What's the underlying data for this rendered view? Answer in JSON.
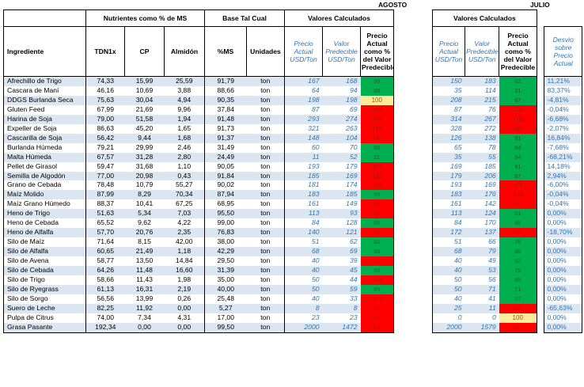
{
  "months": {
    "left": "AGOSTO",
    "right": "JULIO"
  },
  "headers": {
    "group_nutrientes": "Nutrientes como % de MS",
    "group_base": "Base Tal Cual",
    "group_valores": "Valores Calculados",
    "group_valores_julio": "Valores Calculados",
    "ingrediente": "Ingrediente",
    "tdn": "TDN1x",
    "cp": "CP",
    "almidon": "Almidón",
    "ms": "%MS",
    "unidades": "Unidades",
    "precio_actual": "Precio Actual USD/Ton",
    "valor_predecible": "Valor Predecible USD/Ton",
    "precio_pct": "Precio Actual como % del Valor Predecible",
    "j_precio_actual": "Precio Actual USD/Ton",
    "j_valor_predecible": "Valor Predecible USD/Ton",
    "j_precio_pct": "Precio Actual como % del Valor Predecible",
    "desvio": "Desvio sobre Precio Actual"
  },
  "rows": [
    {
      "name": "Afrechillo de Trigo",
      "tdn": "74,33",
      "cp": "15,99",
      "alm": "25,59",
      "ms": "91,79",
      "unit": "ton",
      "precio": "167",
      "valor": "168",
      "pct": "99",
      "pct_color": "green",
      "jprecio": "150",
      "jvalor": "183",
      "jpct": "82",
      "jpct_color": "green",
      "desvio": "11,21%"
    },
    {
      "name": "Cascara de Maní",
      "tdn": "46,16",
      "cp": "10,69",
      "alm": "3,88",
      "ms": "88,66",
      "unit": "ton",
      "precio": "64",
      "valor": "94",
      "pct": "68",
      "pct_color": "green",
      "jprecio": "35",
      "jvalor": "114",
      "jpct": "31",
      "jpct_color": "green",
      "desvio": "83,37%"
    },
    {
      "name": "DDGS Burlanda Seca",
      "tdn": "75,63",
      "cp": "30,04",
      "alm": "4,94",
      "ms": "90,35",
      "unit": "ton",
      "precio": "198",
      "valor": "198",
      "pct": "100",
      "pct_color": "yellow",
      "jprecio": "208",
      "jvalor": "215",
      "jpct": "97",
      "jpct_color": "green",
      "desvio": "-4,81%"
    },
    {
      "name": "Gluten Feed",
      "tdn": "67,99",
      "cp": "21,69",
      "alm": "9,96",
      "ms": "37,84",
      "unit": "ton",
      "precio": "87",
      "valor": "69",
      "pct": "126",
      "pct_color": "red",
      "jprecio": "87",
      "jvalor": "76",
      "jpct": "114",
      "jpct_color": "red",
      "desvio": "-0,04%"
    },
    {
      "name": "Harina de Soja",
      "tdn": "79,00",
      "cp": "51,58",
      "alm": "1,94",
      "ms": "91,48",
      "unit": "ton",
      "precio": "293",
      "valor": "274",
      "pct": "107",
      "pct_color": "red",
      "jprecio": "314",
      "jvalor": "267",
      "jpct": "118",
      "jpct_color": "red",
      "desvio": "-6,68%"
    },
    {
      "name": "Expeller de Soja",
      "tdn": "86,63",
      "cp": "45,20",
      "alm": "1,65",
      "ms": "91,73",
      "unit": "ton",
      "precio": "321",
      "valor": "263",
      "pct": "122",
      "pct_color": "red",
      "jprecio": "328",
      "jvalor": "272",
      "jpct": "120",
      "jpct_color": "red",
      "desvio": "-2,07%"
    },
    {
      "name": "Cascarilla de Soja",
      "tdn": "56,42",
      "cp": "9,44",
      "alm": "1,68",
      "ms": "91,37",
      "unit": "ton",
      "precio": "148",
      "valor": "104",
      "pct": "142",
      "pct_color": "red",
      "jprecio": "126",
      "jvalor": "138",
      "jpct": "91",
      "jpct_color": "green",
      "desvio": "16,84%"
    },
    {
      "name": "Burlanda Húmeda",
      "tdn": "79,21",
      "cp": "29,99",
      "alm": "2,46",
      "ms": "31,49",
      "unit": "ton",
      "precio": "60",
      "valor": "70",
      "pct": "86",
      "pct_color": "green",
      "jprecio": "65",
      "jvalor": "78",
      "jpct": "84",
      "jpct_color": "green",
      "desvio": "-7,68%"
    },
    {
      "name": "Malta Húmeda",
      "tdn": "67,57",
      "cp": "31,28",
      "alm": "2,80",
      "ms": "24,49",
      "unit": "ton",
      "precio": "11",
      "valor": "52",
      "pct": "21",
      "pct_color": "green",
      "jprecio": "35",
      "jvalor": "55",
      "jpct": "64",
      "jpct_color": "green",
      "desvio": "-68,21%"
    },
    {
      "name": "Pellet de Girasol",
      "tdn": "59,47",
      "cp": "31,68",
      "alm": "1,10",
      "ms": "90,05",
      "unit": "ton",
      "precio": "193",
      "valor": "179",
      "pct": "107",
      "pct_color": "red",
      "jprecio": "169",
      "jvalor": "185",
      "jpct": "91",
      "jpct_color": "green",
      "desvio": "14,18%"
    },
    {
      "name": "Semilla de Algodón",
      "tdn": "77,00",
      "cp": "20,98",
      "alm": "0,43",
      "ms": "91,84",
      "unit": "ton",
      "precio": "185",
      "valor": "169",
      "pct": "110",
      "pct_color": "red",
      "jprecio": "179",
      "jvalor": "206",
      "jpct": "87",
      "jpct_color": "green",
      "desvio": "2,94%"
    },
    {
      "name": "Grano de Cebada",
      "tdn": "78,48",
      "cp": "10,79",
      "alm": "55,27",
      "ms": "90,02",
      "unit": "ton",
      "precio": "181",
      "valor": "174",
      "pct": "104",
      "pct_color": "red",
      "jprecio": "193",
      "jvalor": "169",
      "jpct": "114",
      "jpct_color": "red",
      "desvio": "-6,00%"
    },
    {
      "name": "Maíz Molido",
      "tdn": "87,99",
      "cp": "8,29",
      "alm": "70,34",
      "ms": "87,94",
      "unit": "ton",
      "precio": "183",
      "valor": "185",
      "pct": "99",
      "pct_color": "green",
      "jprecio": "183",
      "jvalor": "176",
      "jpct": "104",
      "jpct_color": "red",
      "desvio": "-0,04%"
    },
    {
      "name": "Maíz Grano Húmedo",
      "tdn": "88,37",
      "cp": "10,41",
      "alm": "67,25",
      "ms": "68,95",
      "unit": "ton",
      "precio": "161",
      "valor": "149",
      "pct": "108",
      "pct_color": "red",
      "jprecio": "161",
      "jvalor": "142",
      "jpct": "113",
      "jpct_color": "red",
      "desvio": "-0,04%"
    },
    {
      "name": "Heno de Trigo",
      "tdn": "51,63",
      "cp": "5,34",
      "alm": "7,03",
      "ms": "95,50",
      "unit": "ton",
      "precio": "113",
      "valor": "93",
      "pct": "122",
      "pct_color": "red",
      "jprecio": "113",
      "jvalor": "124",
      "jpct": "91",
      "jpct_color": "green",
      "desvio": "0,00%"
    },
    {
      "name": "Heno de Cebada",
      "tdn": "65,52",
      "cp": "9,62",
      "alm": "4,22",
      "ms": "99,00",
      "unit": "ton",
      "precio": "84",
      "valor": "128",
      "pct": "65",
      "pct_color": "green",
      "jprecio": "84",
      "jvalor": "170",
      "jpct": "49",
      "jpct_color": "green",
      "desvio": "0,00%"
    },
    {
      "name": "Heno de Alfalfa",
      "tdn": "57,70",
      "cp": "20,76",
      "alm": "2,35",
      "ms": "76,83",
      "unit": "ton",
      "precio": "140",
      "valor": "121",
      "pct": "115",
      "pct_color": "red",
      "jprecio": "172",
      "jvalor": "137",
      "jpct": "126",
      "jpct_color": "red",
      "desvio": "-18,70%"
    },
    {
      "name": "Silo de Maíz",
      "tdn": "71,64",
      "cp": "8,15",
      "alm": "42,00",
      "ms": "38,00",
      "unit": "ton",
      "precio": "51",
      "valor": "62",
      "pct": "81",
      "pct_color": "green",
      "jprecio": "51",
      "jvalor": "66",
      "jpct": "76",
      "jpct_color": "green",
      "desvio": "0,00%"
    },
    {
      "name": "Silo de Alfalfa",
      "tdn": "60,65",
      "cp": "21,49",
      "alm": "1,18",
      "ms": "42,29",
      "unit": "ton",
      "precio": "68",
      "valor": "69",
      "pct": "98",
      "pct_color": "green",
      "jprecio": "68",
      "jvalor": "79",
      "jpct": "86",
      "jpct_color": "green",
      "desvio": "0,00%"
    },
    {
      "name": "Silo de Avena",
      "tdn": "58,77",
      "cp": "13,50",
      "alm": "14,84",
      "ms": "29,50",
      "unit": "ton",
      "precio": "40",
      "valor": "39",
      "pct": "102",
      "pct_color": "red",
      "jprecio": "40",
      "jvalor": "49",
      "jpct": "82",
      "jpct_color": "green",
      "desvio": "0,00%"
    },
    {
      "name": "Silo de Cebada",
      "tdn": "64,26",
      "cp": "11,48",
      "alm": "16,60",
      "ms": "31,39",
      "unit": "ton",
      "precio": "40",
      "valor": "45",
      "pct": "88",
      "pct_color": "green",
      "jprecio": "40",
      "jvalor": "53",
      "jpct": "75",
      "jpct_color": "green",
      "desvio": "0,00%"
    },
    {
      "name": "Silo de Trigo",
      "tdn": "58,66",
      "cp": "11,43",
      "alm": "1,98",
      "ms": "35,00",
      "unit": "ton",
      "precio": "50",
      "valor": "44",
      "pct": "114",
      "pct_color": "red",
      "jprecio": "50",
      "jvalor": "56",
      "jpct": "89",
      "jpct_color": "green",
      "desvio": "0,00%"
    },
    {
      "name": "Silo de Ryegrass",
      "tdn": "61,13",
      "cp": "16,31",
      "alm": "2,19",
      "ms": "40,00",
      "unit": "ton",
      "precio": "50",
      "valor": "59",
      "pct": "85",
      "pct_color": "green",
      "jprecio": "50",
      "jvalor": "71",
      "jpct": "71",
      "jpct_color": "green",
      "desvio": "0,00%"
    },
    {
      "name": "Silo de Sorgo",
      "tdn": "56,56",
      "cp": "13,99",
      "alm": "0,26",
      "ms": "25,48",
      "unit": "ton",
      "precio": "40",
      "valor": "33",
      "pct": "121",
      "pct_color": "red",
      "jprecio": "40",
      "jvalor": "41",
      "jpct": "97",
      "jpct_color": "green",
      "desvio": "0,00%"
    },
    {
      "name": "Suero de Leche",
      "tdn": "82,25",
      "cp": "11,92",
      "alm": "0,00",
      "ms": "5,27",
      "unit": "ton",
      "precio": "8",
      "valor": "8",
      "pct": "102",
      "pct_color": "red",
      "jprecio": "25",
      "jvalor": "11",
      "jpct": "226",
      "jpct_color": "red",
      "desvio": "-65,63%"
    },
    {
      "name": "Pulpa de Citrus",
      "tdn": "74,00",
      "cp": "7,34",
      "alm": "4,31",
      "ms": "17,00",
      "unit": "ton",
      "precio": "23",
      "valor": "23",
      "pct": "102",
      "pct_color": "red",
      "jprecio": "0",
      "jvalor": "0",
      "jpct": "100",
      "jpct_color": "yellow",
      "desvio": "0,00%"
    },
    {
      "name": "Grasa Pasante",
      "tdn": "192,34",
      "cp": "0,00",
      "alm": "0,00",
      "ms": "99,50",
      "unit": "ton",
      "precio": "2000",
      "valor": "1472",
      "pct": "136",
      "pct_color": "red",
      "jprecio": "2000",
      "jvalor": "1579",
      "jpct": "127",
      "jpct_color": "red",
      "desvio": "0,00%"
    }
  ]
}
